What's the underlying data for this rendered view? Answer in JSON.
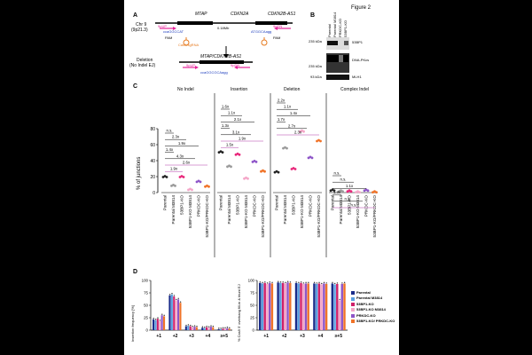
{
  "figure": {
    "title": "Figure 2"
  },
  "panelA": {
    "letter": "A",
    "chr_label": "Chr 9",
    "chr_band": "(9p21.3)",
    "genes": [
      "MTAP",
      "CDKN2A",
      "CDKN2B-AS1"
    ],
    "distance": "0.18Mb",
    "primer_up": "9pUP",
    "primer_dn": "9pDN",
    "seq_left": "ccaGGCCAT",
    "seq_right": "ATGGCAagg",
    "pam_left": "PAM",
    "pam_right": "PAM",
    "guide": "Cas9/sgRNA",
    "deletion_label": "Deletion",
    "deletion_sub": "(No Indel EJ)",
    "fusion_gene": "MTAP/CDKN2B-AS1",
    "seq_fused": "ccaGGCGCAagg"
  },
  "panelB": {
    "letter": "B",
    "lanes": [
      "Parental",
      "Parental M3814",
      "PRKDC-KO",
      "53BP1-KO"
    ],
    "bands": [
      "53BP1",
      "DNA-PKcs",
      "MLH1"
    ],
    "markers": [
      "235 kDa",
      "235 kDa",
      "93 kDa"
    ]
  },
  "panelC": {
    "letter": "C",
    "ylabel": "% of junctions",
    "groups": [
      "No Indel",
      "Insertion",
      "Deletion",
      "Complex Indel"
    ],
    "categories": [
      "Parental",
      "Parental M3814",
      "53BP1-KO",
      "53BP1-KO M3814",
      "PRKDC-KO",
      "53BP1-KO/PRKDC-KO"
    ],
    "stats_no_indel": [
      "n.s.",
      "2.3x",
      "1.9x",
      "1.4x",
      "4.3x",
      "2.6x",
      "1.9x"
    ],
    "stats_insertion": [
      "1.6x",
      "1.1x",
      "2.1x",
      "1.3x",
      "3.1x",
      "1.9x",
      "1.5x"
    ],
    "stats_deletion": [
      "2.2x",
      "1.1x",
      "1.4x",
      "1.7x",
      "2.7x",
      "2.3x"
    ],
    "stats_complex": [
      "n.s.",
      "n.s.",
      "1.1x",
      "1.3x",
      "n.s.",
      "n.s."
    ]
  },
  "chart_data": [
    {
      "type": "scatter",
      "panel": "C",
      "ylabel": "% of junctions",
      "ylim": [
        0,
        80
      ],
      "yticks": [
        0,
        20,
        40,
        60,
        80
      ],
      "categories": [
        "Parental",
        "Parental M3814",
        "53BP1-KO",
        "53BP1-KO M3814",
        "PRKDC-KO",
        "53BP1-KO/PRKDC-KO"
      ],
      "series": [
        {
          "name": "No Indel",
          "values": [
            20,
            9,
            20,
            4,
            14,
            8
          ]
        },
        {
          "name": "Insertion",
          "values": [
            51,
            33,
            48,
            18,
            39,
            27
          ]
        },
        {
          "name": "Deletion",
          "values": [
            26,
            56,
            30,
            77,
            44,
            65
          ]
        },
        {
          "name": "Complex Indel",
          "values": [
            3,
            2,
            2,
            1,
            3,
            1
          ]
        }
      ],
      "colors": [
        "#222222",
        "#9a9a9a",
        "#e8267a",
        "#f4a6c8",
        "#8e55c8",
        "#f07328"
      ]
    },
    {
      "type": "bar",
      "panel": "D-left",
      "ylabel": "Insertion frequency [%]",
      "categories": [
        "+1",
        "+2",
        "+3",
        "+4",
        "≥+5"
      ],
      "ylim": [
        0,
        100
      ],
      "yticks": [
        0,
        25,
        50,
        75,
        100
      ],
      "series": [
        {
          "name": "Parental",
          "values": [
            22,
            70,
            8,
            5,
            2
          ]
        },
        {
          "name": "Parental M3814",
          "values": [
            20,
            72,
            9,
            4,
            2
          ]
        },
        {
          "name": "53BP1-KO",
          "values": [
            23,
            68,
            8,
            6,
            3
          ]
        },
        {
          "name": "53BP1-KO M3814",
          "values": [
            18,
            60,
            6,
            5,
            3
          ]
        },
        {
          "name": "PRKDC-KO",
          "values": [
            30,
            62,
            7,
            7,
            4
          ]
        },
        {
          "name": "53BP1-KO/ PRKDC-KO",
          "values": [
            28,
            55,
            6,
            6,
            3
          ]
        }
      ]
    },
    {
      "type": "bar",
      "panel": "D-right",
      "ylabel": "% Cas9 5' overhang fill-in & blunt EJ",
      "categories": [
        "+1",
        "+2",
        "+3",
        "+4",
        "≥+5"
      ],
      "ylim": [
        0,
        100
      ],
      "yticks": [
        0,
        25,
        50,
        75,
        100
      ],
      "series": [
        {
          "name": "Parental",
          "values": [
            95,
            96,
            95,
            94,
            94
          ]
        },
        {
          "name": "Parental M3814",
          "values": [
            94,
            95,
            94,
            93,
            92
          ]
        },
        {
          "name": "53BP1-KO",
          "values": [
            95,
            95,
            95,
            94,
            93
          ]
        },
        {
          "name": "53BP1-KO M3814",
          "values": [
            93,
            94,
            93,
            92,
            60
          ]
        },
        {
          "name": "PRKDC-KO",
          "values": [
            95,
            96,
            94,
            94,
            93
          ]
        },
        {
          "name": "53BP1-KO/ PRKDC-KO",
          "values": [
            94,
            95,
            94,
            93,
            94
          ]
        }
      ]
    }
  ],
  "panelD": {
    "letter": "D",
    "left_ylabel": "Insertion frequency [%]",
    "right_ylabel": "% Cas9 5' overhang fill-in & blunt EJ",
    "legend": [
      {
        "label": "Parental",
        "color": "#1a2c8a"
      },
      {
        "label": "Parental M3814",
        "color": "#5aa0e0"
      },
      {
        "label": "53BP1-KO",
        "color": "#d0206a"
      },
      {
        "label": "53BP1-KO M3814",
        "color": "#f4a6c8"
      },
      {
        "label": "PRKDC-KO",
        "color": "#8e55c8"
      },
      {
        "label": "53BP1-KO/ PRKDC-KO",
        "color": "#f07328"
      }
    ]
  }
}
